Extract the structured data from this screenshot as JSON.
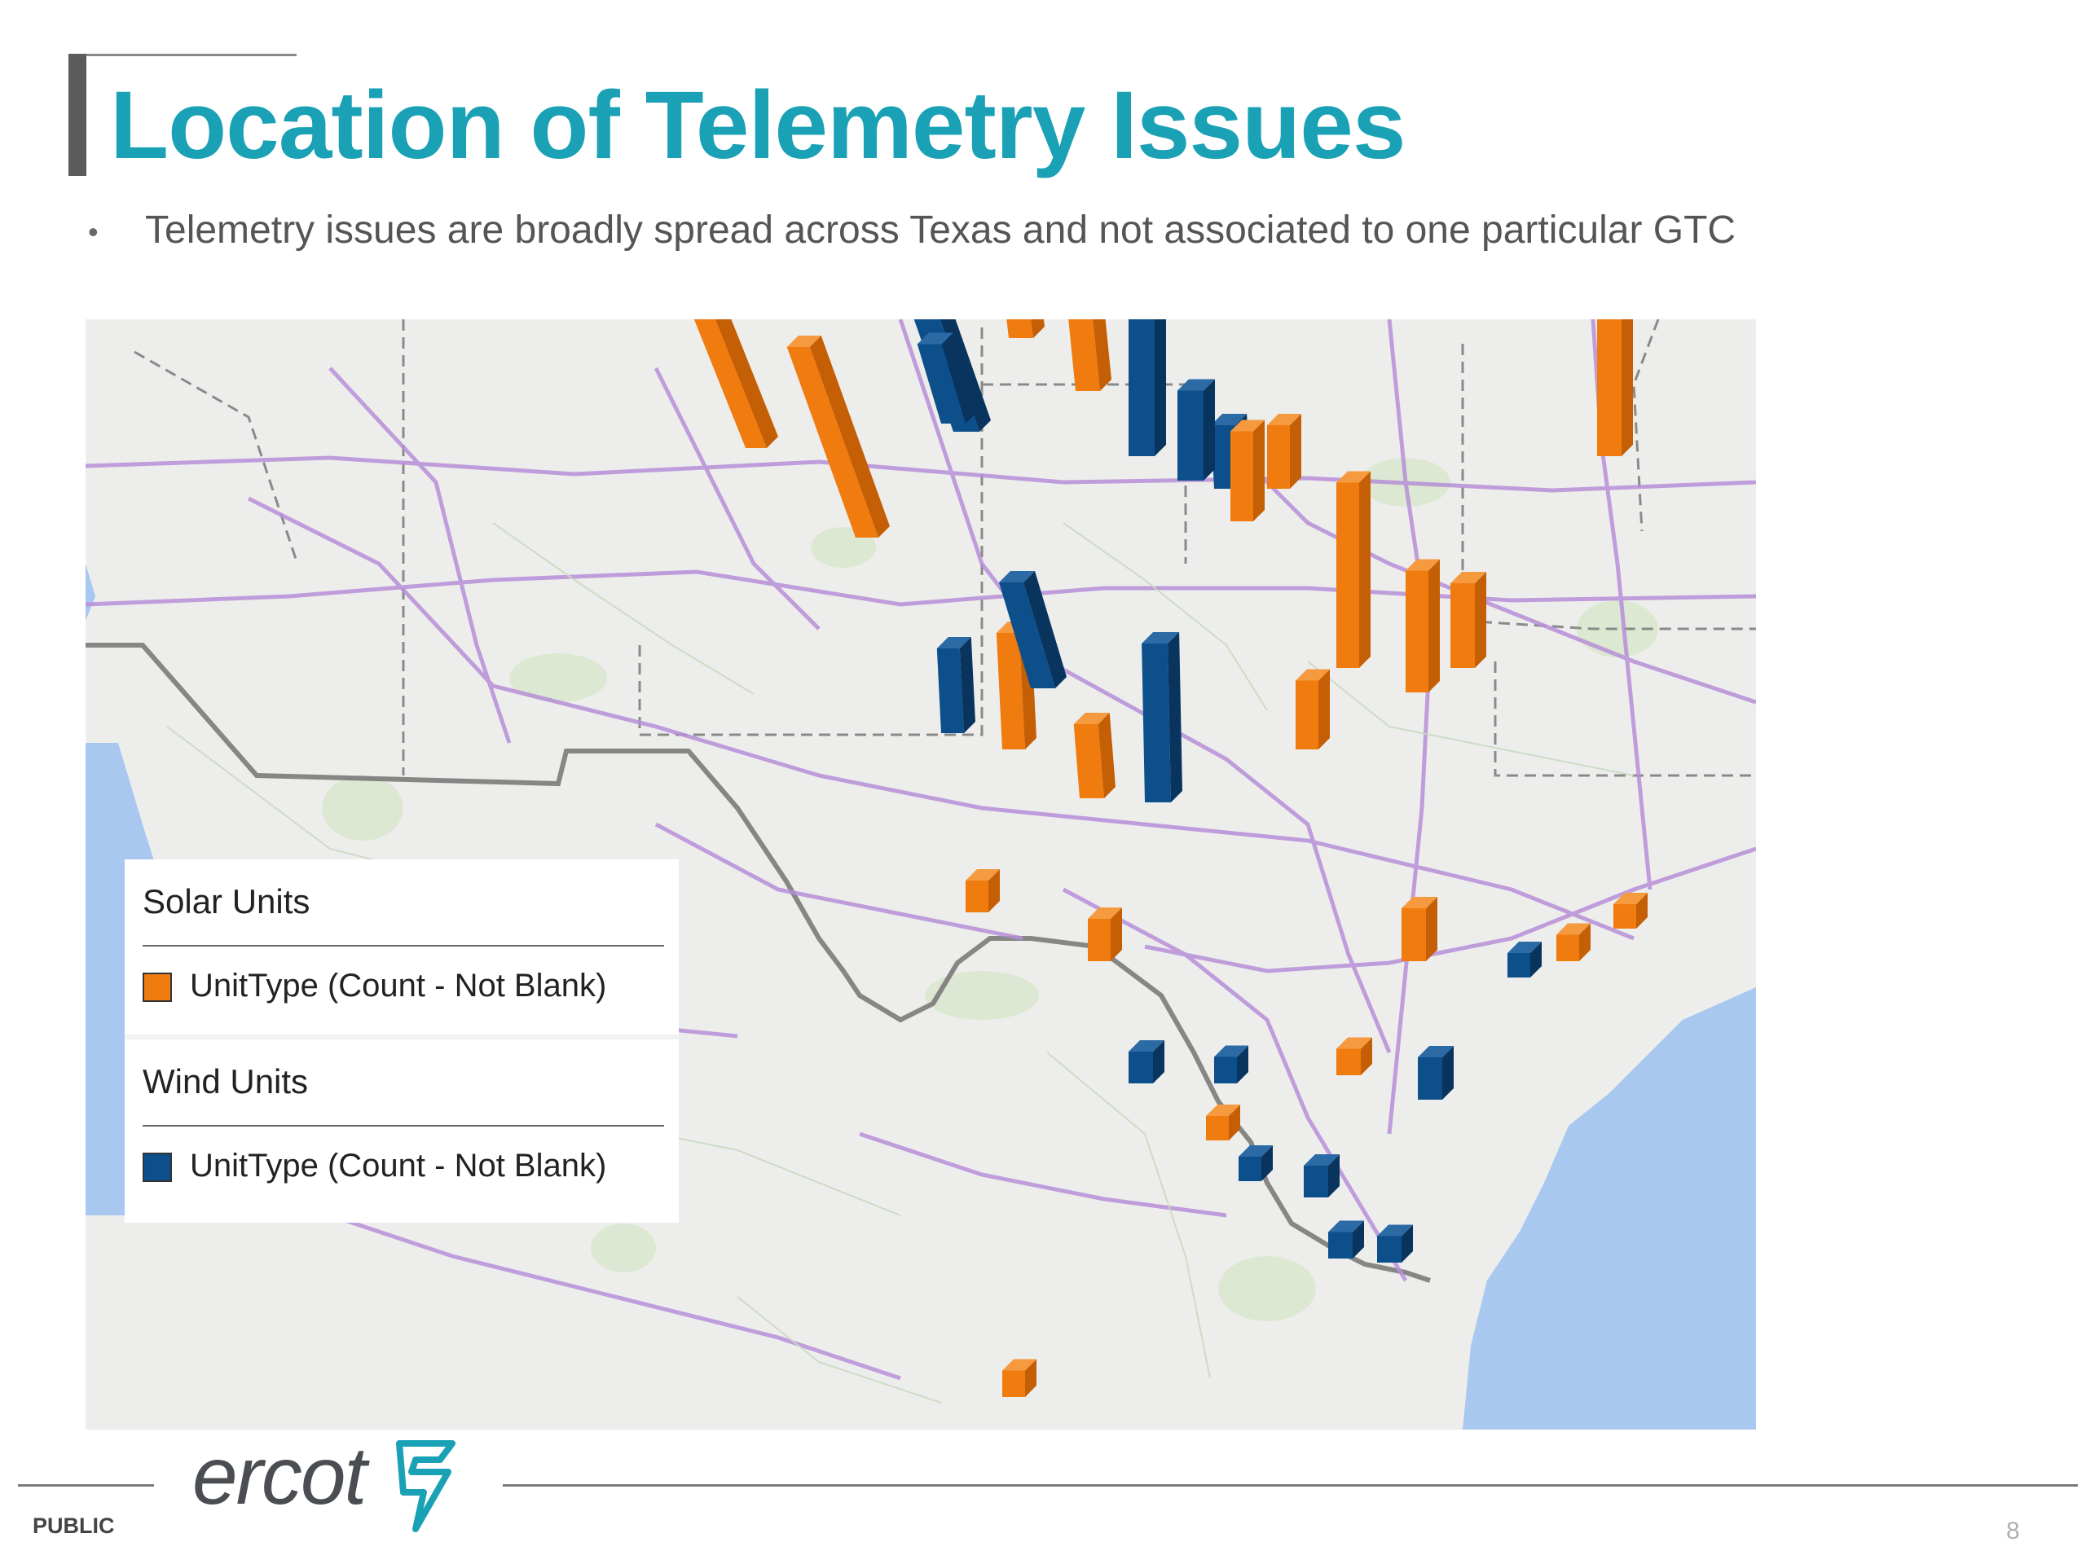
{
  "slide": {
    "title": "Location of Telemetry Issues",
    "bullet": "Telemetry issues are broadly spread across Texas and not associated to one particular GTC",
    "page_number": "8",
    "classification": "PUBLIC",
    "logo_text": "ercot"
  },
  "legend": {
    "solar_title": "Solar Units",
    "solar_label": "UnitType (Count - Not Blank)",
    "wind_title": "Wind Units",
    "wind_label": "UnitType (Count - Not Blank)"
  },
  "colors": {
    "title": "#1aa1b5",
    "solar": "#f07b0f",
    "wind": "#0d4f8b",
    "water": "#a8c8f0",
    "highway": "#b78fd9",
    "border": "#7a7a7a"
  },
  "map": {
    "basemap": "Texas region road map",
    "columns": [
      {
        "type": "wind",
        "level": 0.98
      },
      {
        "type": "wind",
        "level": 0.28
      },
      {
        "type": "solar",
        "level": 0.36
      },
      {
        "type": "solar",
        "level": 0.26
      },
      {
        "type": "wind",
        "level": 0.4
      },
      {
        "type": "solar",
        "level": 0.17
      },
      {
        "type": "solar",
        "level": 0.32
      },
      {
        "type": "wind",
        "level": 0.3
      },
      {
        "type": "wind",
        "level": 0.12
      },
      {
        "type": "solar",
        "level": 0.22
      },
      {
        "type": "solar",
        "level": 0.14
      },
      {
        "type": "wind",
        "level": 0.16
      },
      {
        "type": "wind",
        "level": 0.17
      },
      {
        "type": "wind",
        "level": 0.2
      },
      {
        "type": "wind",
        "level": 0.15
      },
      {
        "type": "wind",
        "level": 0.3
      },
      {
        "type": "solar",
        "level": 0.17
      },
      {
        "type": "solar",
        "level": 0.12
      },
      {
        "type": "solar",
        "level": 0.23
      },
      {
        "type": "solar",
        "level": 0.35
      },
      {
        "type": "solar",
        "level": 0.13
      },
      {
        "type": "solar",
        "level": 0.16
      },
      {
        "type": "solar",
        "level": 0.72
      },
      {
        "type": "solar",
        "level": 0.1
      },
      {
        "type": "solar",
        "level": 0.08
      },
      {
        "type": "solar",
        "level": 0.05
      },
      {
        "type": "wind",
        "level": 0.06
      },
      {
        "type": "wind",
        "level": 0.05
      },
      {
        "type": "solar",
        "level": 0.06
      },
      {
        "type": "solar",
        "level": 0.05
      },
      {
        "type": "wind",
        "level": 0.08
      },
      {
        "type": "wind",
        "level": 0.06
      },
      {
        "type": "solar",
        "level": 0.04
      },
      {
        "type": "wind",
        "level": 0.04
      },
      {
        "type": "wind",
        "level": 0.05
      },
      {
        "type": "wind",
        "level": 0.05
      },
      {
        "type": "solar",
        "level": 0.05
      },
      {
        "type": "solar",
        "level": 0.04
      },
      {
        "type": "wind",
        "level": 0.04
      }
    ]
  }
}
